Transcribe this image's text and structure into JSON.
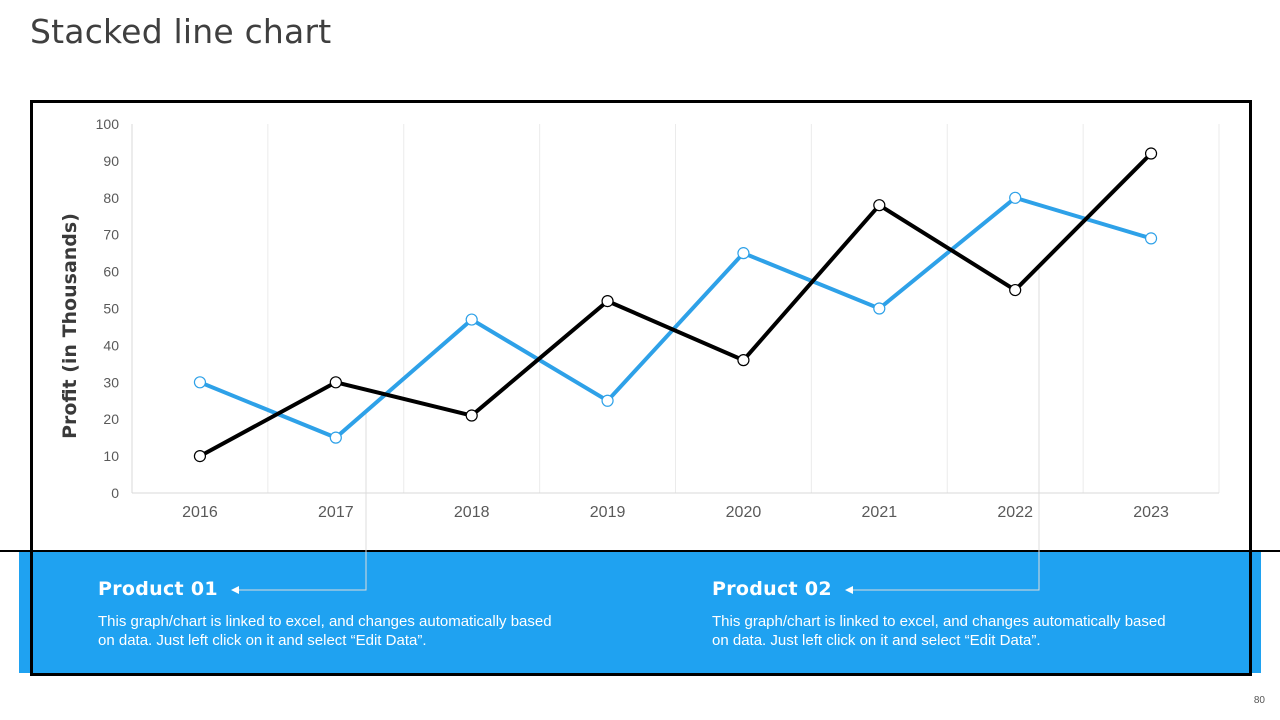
{
  "slide": {
    "title": "Stacked line chart",
    "page_number": "80"
  },
  "products": [
    {
      "title": "Product 01",
      "description": "This graph/chart is linked to excel, and changes automatically based on data. Just left click on it and select “Edit Data”."
    },
    {
      "title": "Product 02",
      "description": "This graph/chart is linked to excel, and changes automatically based on data. Just left click on it and select “Edit Data”."
    }
  ],
  "colors": {
    "band": "#1fa2f1",
    "series_blue": "#2ea1e8",
    "series_black": "#000000"
  },
  "chart_data": {
    "type": "line",
    "title": "",
    "xlabel": "",
    "ylabel": "Profit (in Thousands)",
    "categories": [
      "2016",
      "2017",
      "2018",
      "2019",
      "2020",
      "2021",
      "2022",
      "2023"
    ],
    "ylim": [
      0,
      100
    ],
    "yticks": [
      0,
      10,
      20,
      30,
      40,
      50,
      60,
      70,
      80,
      90,
      100
    ],
    "grid": "vertical",
    "series": [
      {
        "color": "#2ea1e8",
        "values": [
          30,
          15,
          47,
          25,
          65,
          50,
          80,
          69
        ]
      },
      {
        "color": "#000000",
        "values": [
          10,
          30,
          21,
          52,
          36,
          78,
          55,
          92
        ]
      }
    ]
  }
}
